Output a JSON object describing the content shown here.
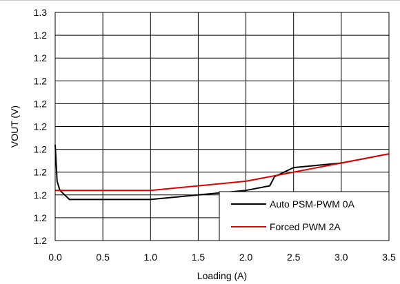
{
  "chart_data": {
    "type": "line",
    "title": "",
    "xlabel": "Loading (A)",
    "ylabel": "VOUT (V)",
    "xlim": [
      0,
      3.5
    ],
    "x_ticks": [
      "0.0",
      "0.5",
      "1.0",
      "1.5",
      "2.0",
      "2.5",
      "3.0",
      "3.5"
    ],
    "y_ticks": [
      "1.2",
      "1.2",
      "1.2",
      "1.2",
      "1.2",
      "1.2",
      "1.2",
      "1.2",
      "1.2",
      "1.2",
      "1.3"
    ],
    "grid": true,
    "legend_position": "bottom-right",
    "series": [
      {
        "name": "Auto PSM-PWM 0A",
        "color": "#000000",
        "x": [
          0.0,
          0.02,
          0.05,
          0.1,
          0.15,
          0.2,
          0.3,
          0.5,
          1.0,
          1.5,
          2.0,
          2.25,
          2.3,
          2.5,
          3.0,
          3.5
        ],
        "y": [
          1.2296,
          1.2288,
          1.2286,
          1.2285,
          1.2284,
          1.2284,
          1.2284,
          1.2284,
          1.2284,
          1.2285,
          1.2286,
          1.2287,
          1.2289,
          1.2291,
          1.2292,
          1.2294
        ]
      },
      {
        "name": "Forced PWM 2A",
        "color": "#e00000",
        "x": [
          0.0,
          0.5,
          1.0,
          1.5,
          2.0,
          2.5,
          3.0,
          3.5
        ],
        "y": [
          1.2286,
          1.2286,
          1.2286,
          1.2287,
          1.2288,
          1.229,
          1.2292,
          1.2294
        ]
      }
    ]
  }
}
